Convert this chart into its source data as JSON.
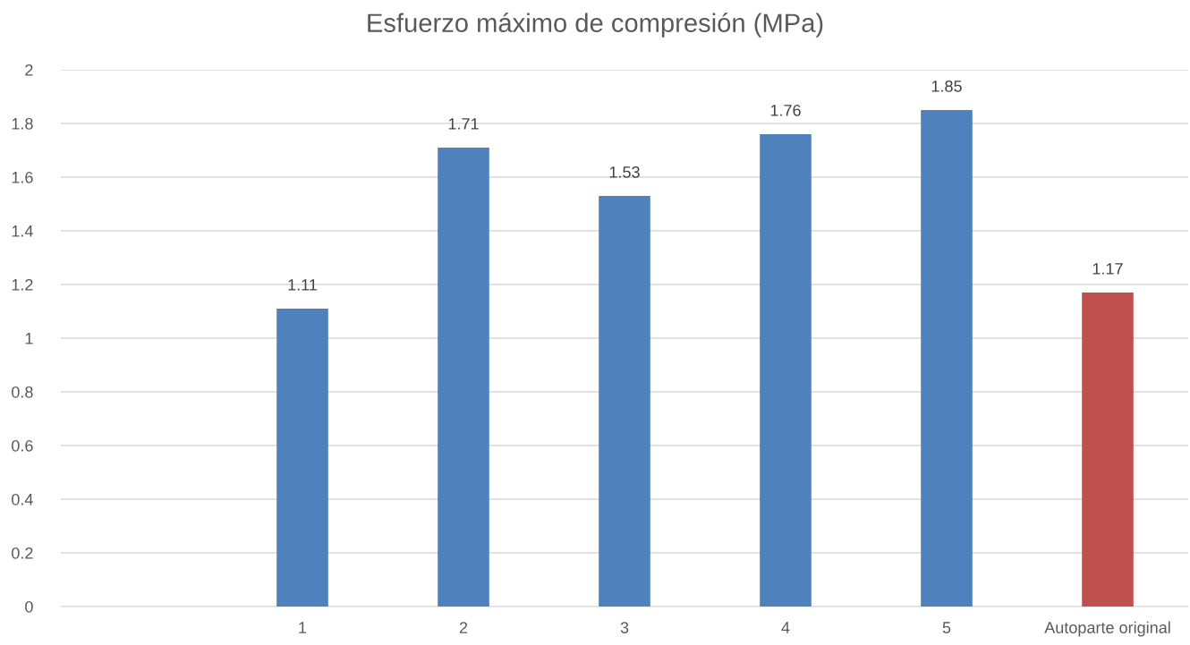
{
  "chart_data": {
    "type": "bar",
    "title": "Esfuerzo máximo de compresión (MPa)",
    "categories": [
      null,
      "1",
      "2",
      "3",
      "4",
      "5",
      "Autoparte original"
    ],
    "values": [
      null,
      1.11,
      1.71,
      1.53,
      1.76,
      1.85,
      1.17
    ],
    "colors": [
      "#4f81bd",
      "#4f81bd",
      "#4f81bd",
      "#4f81bd",
      "#4f81bd",
      "#4f81bd",
      "#c0504d"
    ],
    "ylim": [
      0,
      2
    ],
    "yticks": [
      0,
      0.2,
      0.4,
      0.6,
      0.8,
      1,
      1.2,
      1.4,
      1.6,
      1.8,
      2
    ],
    "grid": "y",
    "data_labels": true,
    "legend": false
  }
}
